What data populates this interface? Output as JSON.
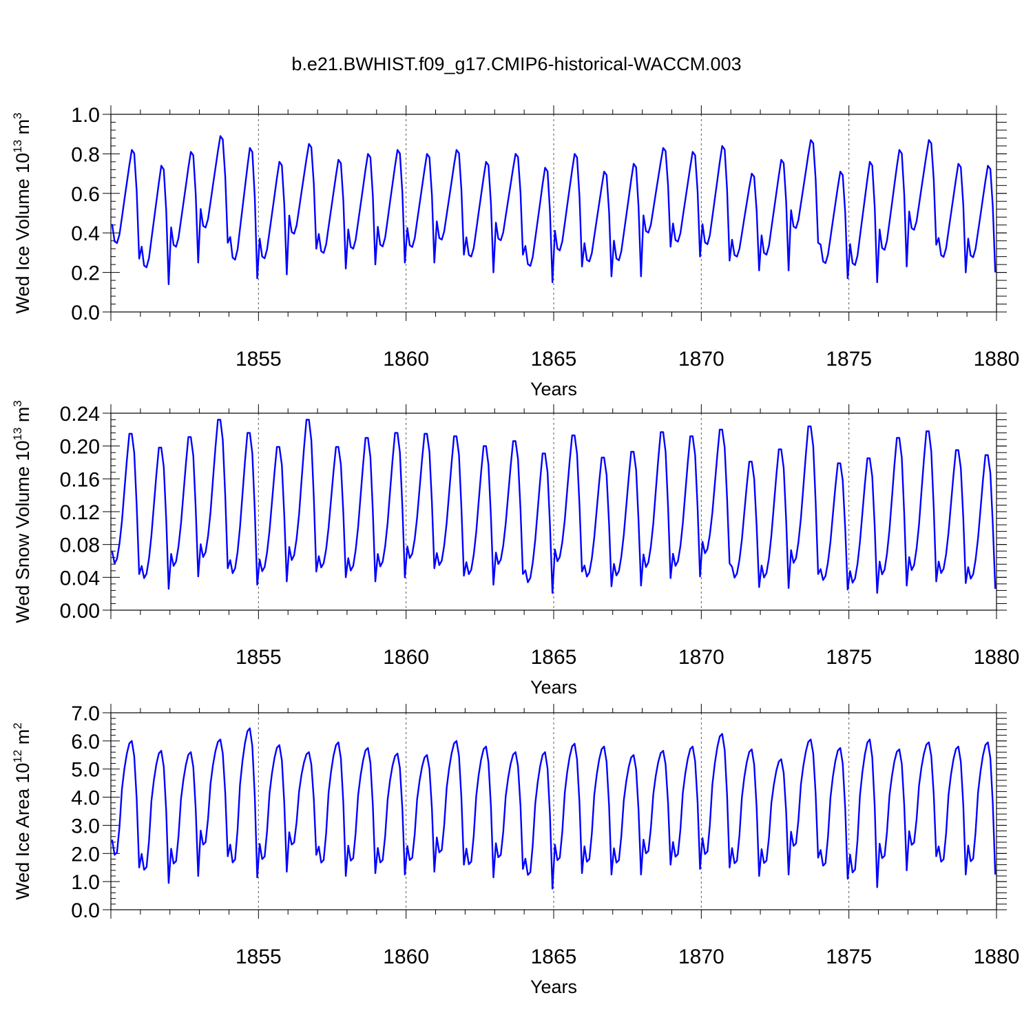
{
  "figure_title": "b.e21.BWHIST.f09_g17.CMIP6-historical-WACCM.003",
  "line_color": "#0000ff",
  "chart_data": [
    {
      "type": "line",
      "title": "",
      "xlabel": "Years",
      "ylabel_main": "Wed Ice Volume 10",
      "ylabel_exp": "13",
      "ylabel_unit": " m",
      "ylabel_unit_exp": "3",
      "xlim": [
        1850.0,
        1880.0
      ],
      "ylim": [
        0.0,
        1.0
      ],
      "xticks": [
        1855,
        1860,
        1865,
        1870,
        1875,
        1880
      ],
      "xtick_labels": [
        "1855",
        "1860",
        "1865",
        "1870",
        "1875",
        "1880"
      ],
      "yticks": [
        0.0,
        0.2,
        0.4,
        0.6,
        0.8,
        1.0
      ],
      "ytick_labels": [
        "0.0",
        "0.2",
        "0.4",
        "0.6",
        "0.8",
        "1.0"
      ],
      "vlines": [
        1855,
        1860,
        1865,
        1870,
        1875
      ],
      "series": [
        {
          "name": "Wed Ice Volume",
          "x_start": 1850.0417,
          "x_step": 0.083333,
          "seasonal": [
            0.38,
            0.28,
            0.27,
            0.32,
            0.42,
            0.52,
            0.62,
            0.72,
            0.81,
            0.79,
            0.57,
            0.18
          ],
          "maxima": [
            0.82,
            0.74,
            0.81,
            0.89,
            0.83,
            0.76,
            0.85,
            0.77,
            0.8,
            0.82,
            0.8,
            0.82,
            0.76,
            0.8,
            0.73,
            0.8,
            0.71,
            0.75,
            0.83,
            0.81,
            0.84,
            0.7,
            0.77,
            0.87,
            0.71,
            0.76,
            0.82,
            0.87,
            0.75,
            0.74
          ],
          "minima": [
            0.27,
            0.14,
            0.25,
            0.35,
            0.17,
            0.19,
            0.32,
            0.22,
            0.24,
            0.25,
            0.25,
            0.29,
            0.2,
            0.29,
            0.15,
            0.23,
            0.18,
            0.18,
            0.33,
            0.28,
            0.26,
            0.21,
            0.21,
            0.35,
            0.17,
            0.15,
            0.23,
            0.34,
            0.2,
            0.2
          ]
        }
      ]
    },
    {
      "type": "line",
      "title": "",
      "xlabel": "Years",
      "ylabel_main": "Wed Snow Volume 10",
      "ylabel_exp": "13",
      "ylabel_unit": " m",
      "ylabel_unit_exp": "3",
      "xlim": [
        1850.0,
        1880.0
      ],
      "ylim": [
        0.0,
        0.24
      ],
      "xticks": [
        1855,
        1860,
        1865,
        1870,
        1875,
        1880
      ],
      "xtick_labels": [
        "1855",
        "1860",
        "1865",
        "1870",
        "1875",
        "1880"
      ],
      "yticks": [
        0.0,
        0.04,
        0.08,
        0.12,
        0.16,
        0.2,
        0.24
      ],
      "ytick_labels": [
        "0.00",
        "0.04",
        "0.08",
        "0.12",
        "0.16",
        "0.20",
        "0.24"
      ],
      "vlines": [
        1855,
        1860,
        1865,
        1870,
        1875
      ],
      "series": [
        {
          "name": "Wed Snow Volume",
          "x_start": 1850.0417,
          "x_step": 0.083333,
          "seasonal": [
            0.06,
            0.044,
            0.05,
            0.07,
            0.1,
            0.14,
            0.18,
            0.215,
            0.215,
            0.19,
            0.12,
            0.03
          ],
          "maxima": [
            0.215,
            0.198,
            0.211,
            0.232,
            0.216,
            0.199,
            0.232,
            0.199,
            0.21,
            0.216,
            0.215,
            0.212,
            0.2,
            0.206,
            0.191,
            0.213,
            0.186,
            0.193,
            0.217,
            0.212,
            0.22,
            0.181,
            0.196,
            0.224,
            0.179,
            0.185,
            0.21,
            0.218,
            0.195,
            0.189
          ],
          "minima": [
            0.044,
            0.026,
            0.041,
            0.051,
            0.031,
            0.035,
            0.047,
            0.04,
            0.035,
            0.04,
            0.051,
            0.042,
            0.031,
            0.044,
            0.021,
            0.047,
            0.029,
            0.03,
            0.039,
            0.041,
            0.057,
            0.028,
            0.027,
            0.044,
            0.025,
            0.021,
            0.03,
            0.035,
            0.033,
            0.026
          ]
        }
      ]
    },
    {
      "type": "line",
      "title": "",
      "xlabel": "Years",
      "ylabel_main": "Wed Ice Area 10",
      "ylabel_exp": "12",
      "ylabel_unit": " m",
      "ylabel_unit_exp": "2",
      "xlim": [
        1850.0,
        1880.0
      ],
      "ylim": [
        0.0,
        7.0
      ],
      "xticks": [
        1855,
        1860,
        1865,
        1870,
        1875,
        1880
      ],
      "xtick_labels": [
        "1855",
        "1860",
        "1865",
        "1870",
        "1875",
        "1880"
      ],
      "yticks": [
        0.0,
        1.0,
        2.0,
        3.0,
        4.0,
        5.0,
        6.0,
        7.0
      ],
      "ytick_labels": [
        "0.0",
        "1.0",
        "2.0",
        "3.0",
        "4.0",
        "5.0",
        "6.0",
        "7.0"
      ],
      "vlines": [
        1855,
        1860,
        1865,
        1870,
        1875
      ],
      "series": [
        {
          "name": "Wed Ice Area",
          "x_start": 1850.0417,
          "x_step": 0.083333,
          "seasonal": [
            2.1,
            1.5,
            1.6,
            2.6,
            4.1,
            4.9,
            5.5,
            5.9,
            6.0,
            5.4,
            3.7,
            1.0
          ],
          "maxima": [
            6.0,
            5.65,
            5.6,
            6.05,
            6.45,
            5.85,
            5.6,
            5.95,
            5.75,
            5.55,
            5.5,
            6.0,
            5.8,
            5.6,
            5.6,
            5.9,
            5.8,
            5.5,
            5.65,
            5.8,
            6.25,
            5.7,
            5.35,
            6.05,
            5.75,
            6.05,
            5.7,
            5.95,
            5.8,
            5.95
          ],
          "minima": [
            1.5,
            0.95,
            1.2,
            1.9,
            1.15,
            1.35,
            1.95,
            1.2,
            1.3,
            1.25,
            1.35,
            1.6,
            1.15,
            1.45,
            0.75,
            1.3,
            1.25,
            1.25,
            1.6,
            1.45,
            1.5,
            1.2,
            1.25,
            1.85,
            1.1,
            0.8,
            1.4,
            1.9,
            1.25,
            1.25
          ]
        }
      ]
    }
  ]
}
